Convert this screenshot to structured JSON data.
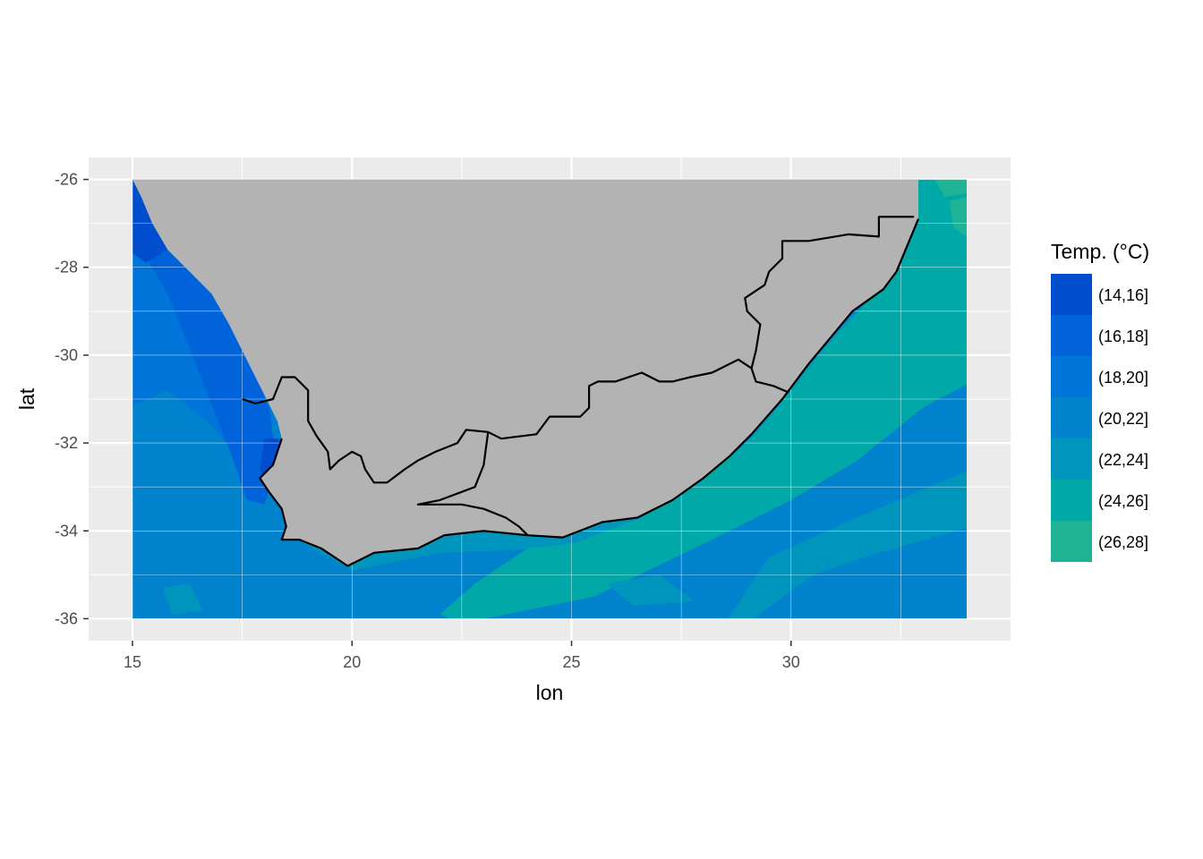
{
  "chart_data": {
    "type": "heatmap",
    "subtype": "filled-contour-map",
    "title": "",
    "xlabel": "lon",
    "ylabel": "lat",
    "xlim": [
      14,
      35
    ],
    "ylim": [
      -36.5,
      -25.5
    ],
    "data_extent": {
      "lon": [
        15,
        34
      ],
      "lat": [
        -36,
        -26
      ]
    },
    "x_ticks": [
      15,
      20,
      25,
      30
    ],
    "x_tick_labels": [
      "15",
      "20",
      "25",
      "30"
    ],
    "y_ticks": [
      -26,
      -28,
      -30,
      -32,
      -34,
      -36
    ],
    "y_tick_labels": [
      "-26",
      "-28",
      "-30",
      "-32",
      "-34",
      "-36"
    ],
    "grid": true,
    "background": "#ebebeb",
    "land_color": "#b3b3b3",
    "border_color": "#000000",
    "legend": {
      "title": "Temp. (°C)",
      "position": "right",
      "bins": [
        {
          "label": "(14,16]",
          "color": "#004dcd"
        },
        {
          "label": "(16,18]",
          "color": "#0063da"
        },
        {
          "label": "(18,20]",
          "color": "#0075d9"
        },
        {
          "label": "(20,22]",
          "color": "#0083cc"
        },
        {
          "label": "(22,24]",
          "color": "#0095bd"
        },
        {
          "label": "(24,26]",
          "color": "#00a8a8"
        },
        {
          "label": "(26,28]",
          "color": "#1eb394"
        }
      ]
    },
    "coastline": [
      [
        15.0,
        -26.0
      ],
      [
        15.2,
        -26.4
      ],
      [
        15.45,
        -27.0
      ],
      [
        15.8,
        -27.6
      ],
      [
        16.4,
        -28.2
      ],
      [
        16.8,
        -28.6
      ],
      [
        17.2,
        -29.3
      ],
      [
        17.5,
        -29.9
      ],
      [
        17.9,
        -30.7
      ],
      [
        18.3,
        -31.5
      ],
      [
        18.4,
        -31.9
      ],
      [
        18.2,
        -32.5
      ],
      [
        17.9,
        -32.8
      ],
      [
        18.1,
        -33.1
      ],
      [
        18.4,
        -33.5
      ],
      [
        18.5,
        -33.9
      ],
      [
        18.4,
        -34.2
      ],
      [
        18.8,
        -34.2
      ],
      [
        19.3,
        -34.4
      ],
      [
        19.9,
        -34.8
      ],
      [
        20.5,
        -34.5
      ],
      [
        21.5,
        -34.4
      ],
      [
        22.1,
        -34.1
      ],
      [
        23.0,
        -34.0
      ],
      [
        24.0,
        -34.1
      ],
      [
        24.8,
        -34.15
      ],
      [
        25.7,
        -33.8
      ],
      [
        26.5,
        -33.7
      ],
      [
        27.3,
        -33.3
      ],
      [
        28.0,
        -32.8
      ],
      [
        28.6,
        -32.3
      ],
      [
        29.1,
        -31.8
      ],
      [
        29.8,
        -31.0
      ],
      [
        30.4,
        -30.2
      ],
      [
        30.9,
        -29.6
      ],
      [
        31.4,
        -29.0
      ],
      [
        32.1,
        -28.5
      ],
      [
        32.4,
        -28.1
      ],
      [
        32.9,
        -26.9
      ],
      [
        32.9,
        -26.0
      ]
    ],
    "province_borders": [
      [
        [
          29.95,
          -30.85
        ],
        [
          29.6,
          -30.7
        ],
        [
          29.2,
          -30.6
        ],
        [
          29.1,
          -30.3
        ],
        [
          29.2,
          -29.9
        ],
        [
          29.3,
          -29.3
        ],
        [
          29.0,
          -29.0
        ],
        [
          28.95,
          -28.7
        ],
        [
          29.4,
          -28.4
        ],
        [
          29.5,
          -28.1
        ],
        [
          29.8,
          -27.8
        ],
        [
          29.8,
          -27.4
        ],
        [
          30.4,
          -27.4
        ],
        [
          31.0,
          -27.3
        ],
        [
          31.3,
          -27.25
        ],
        [
          32.0,
          -27.3
        ],
        [
          32.0,
          -26.85
        ],
        [
          32.8,
          -26.85
        ]
      ],
      [
        [
          29.1,
          -30.3
        ],
        [
          28.8,
          -30.1
        ],
        [
          28.4,
          -30.3
        ],
        [
          28.2,
          -30.4
        ],
        [
          27.7,
          -30.5
        ],
        [
          27.3,
          -30.6
        ],
        [
          27.0,
          -30.6
        ],
        [
          26.6,
          -30.4
        ],
        [
          26.0,
          -30.6
        ],
        [
          25.6,
          -30.6
        ],
        [
          25.4,
          -30.7
        ],
        [
          25.4,
          -31.2
        ],
        [
          25.2,
          -31.4
        ],
        [
          24.5,
          -31.4
        ],
        [
          24.2,
          -31.8
        ],
        [
          23.4,
          -31.9
        ],
        [
          23.1,
          -31.75
        ],
        [
          22.6,
          -31.7
        ],
        [
          22.4,
          -32.0
        ],
        [
          21.9,
          -32.2
        ],
        [
          21.5,
          -32.4
        ],
        [
          21.2,
          -32.6
        ],
        [
          20.8,
          -32.9
        ],
        [
          20.5,
          -32.9
        ],
        [
          20.3,
          -32.6
        ],
        [
          20.2,
          -32.3
        ],
        [
          20.0,
          -32.2
        ],
        [
          19.7,
          -32.4
        ],
        [
          19.5,
          -32.6
        ],
        [
          19.45,
          -32.2
        ],
        [
          19.2,
          -31.85
        ],
        [
          19.0,
          -31.5
        ],
        [
          19.0,
          -30.8
        ],
        [
          18.7,
          -30.5
        ],
        [
          18.4,
          -30.5
        ],
        [
          18.2,
          -31.0
        ],
        [
          17.8,
          -31.1
        ],
        [
          17.5,
          -31.0
        ]
      ],
      [
        [
          23.1,
          -31.75
        ],
        [
          23.0,
          -32.5
        ],
        [
          22.8,
          -33.0
        ],
        [
          22.0,
          -33.3
        ],
        [
          21.5,
          -33.4
        ],
        [
          22.5,
          -33.4
        ],
        [
          23.0,
          -33.5
        ],
        [
          23.5,
          -33.7
        ],
        [
          23.8,
          -33.9
        ],
        [
          24.0,
          -34.1
        ]
      ]
    ],
    "temperature_zones": [
      {
        "bin": "(14,16]",
        "region": "west coast strip near 15.0–16.0 E, lat -26.0 to -28.0; cold pocket near 18.2 E, -32.0 to -33.0"
      },
      {
        "bin": "(16,18]",
        "region": "nearshore west coast, lon 15.5–18.5, lat -27.5 to -33.5"
      },
      {
        "bin": "(18,20]",
        "region": "offshore west coast, lon 15–17.5, lat -27.5 to -31.5"
      },
      {
        "bin": "(20,22]",
        "region": "southwest shelf and offshore south, lon 15–26 and 30–34, lat -31.5 to -36"
      },
      {
        "bin": "(22,24]",
        "region": "south coast shelf and Agulhas edge"
      },
      {
        "bin": "(24,26]",
        "region": "east coast Agulhas current, lon 26–34, lat -26 to -35"
      },
      {
        "bin": "(26,28]",
        "region": "northeast corner near 33.5 E, -26 to -27.5"
      }
    ]
  }
}
